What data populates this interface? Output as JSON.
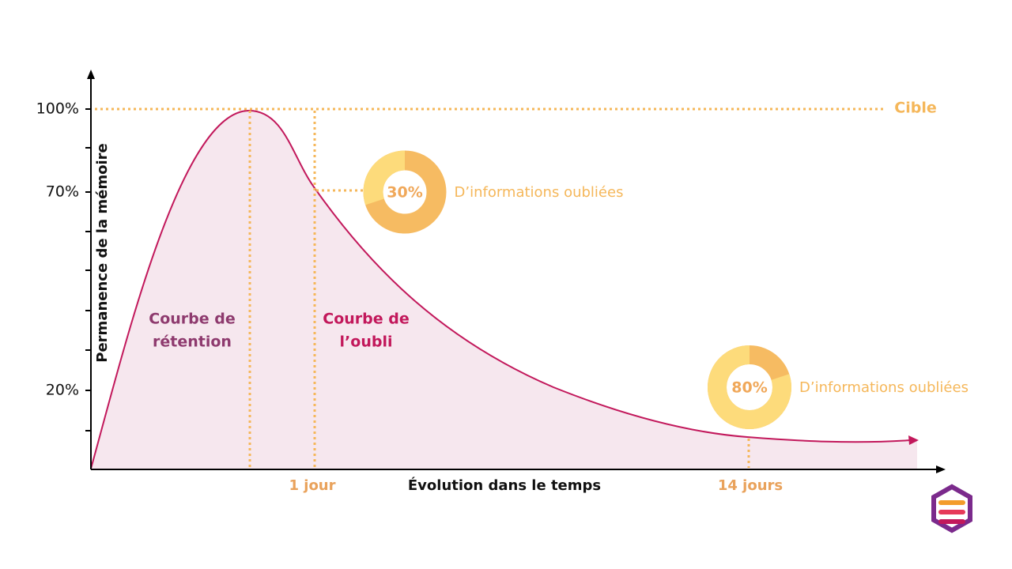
{
  "axes": {
    "y_label": "Permanence de la mémoire",
    "x_label": "Évolution dans le temps",
    "y_ticks": [
      "100%",
      "70%",
      "20%"
    ],
    "x_ticks": [
      "1 jour",
      "14 jours"
    ]
  },
  "target_label": "Cible",
  "curve_labels": {
    "retention": [
      "Courbe de",
      "rétention"
    ],
    "forgetting": [
      "Courbe de",
      "l’oubli"
    ]
  },
  "donuts": [
    {
      "value": 30,
      "label": "30%",
      "caption": "D’informations oubliées"
    },
    {
      "value": 80,
      "label": "80%",
      "caption": "D’informations oubliées"
    }
  ]
}
